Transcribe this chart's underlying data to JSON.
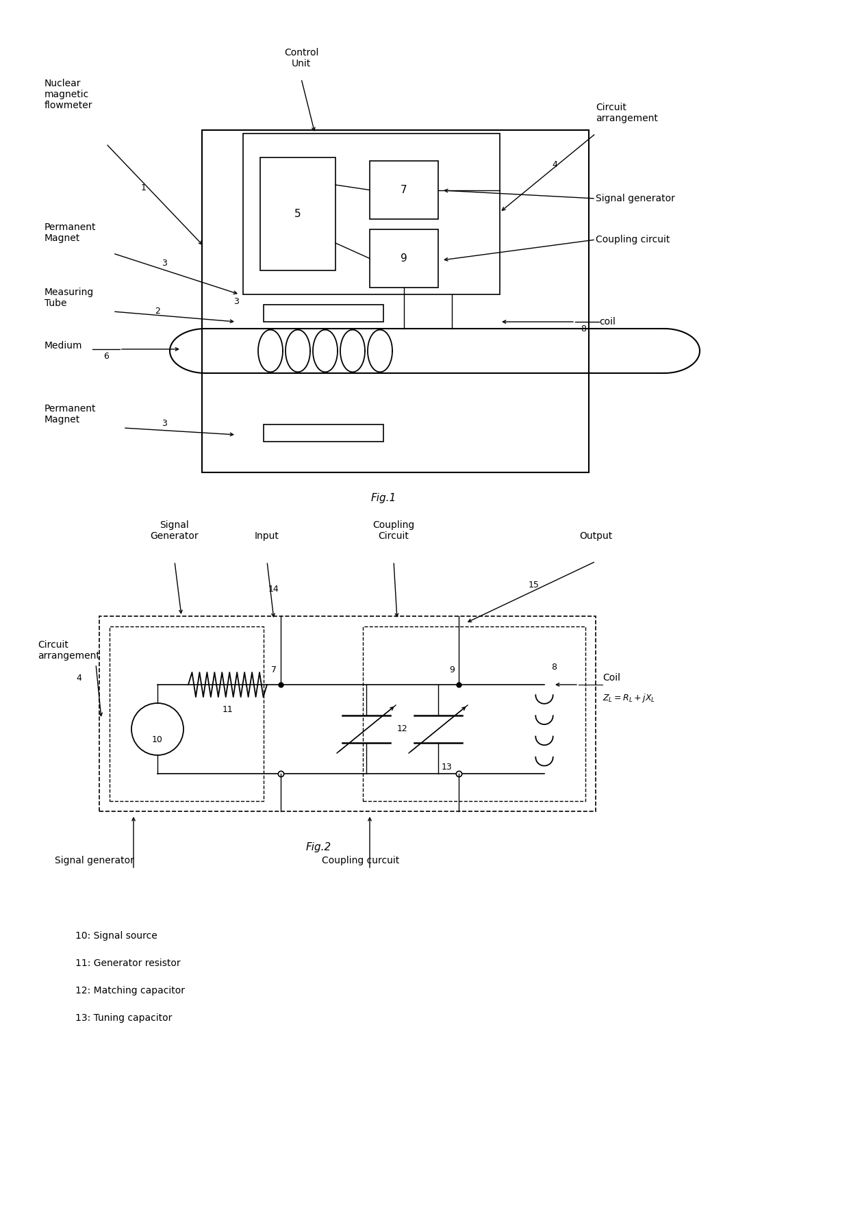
{
  "bg_color": "#ffffff",
  "line_color": "#000000",
  "fig1_label": "Fig.1",
  "fig2_label": "Fig.2",
  "legend_lines": [
    "10: Signal source",
    "11: Generator resistor",
    "12: Matching capacitor",
    "13: Tuning capacitor"
  ]
}
